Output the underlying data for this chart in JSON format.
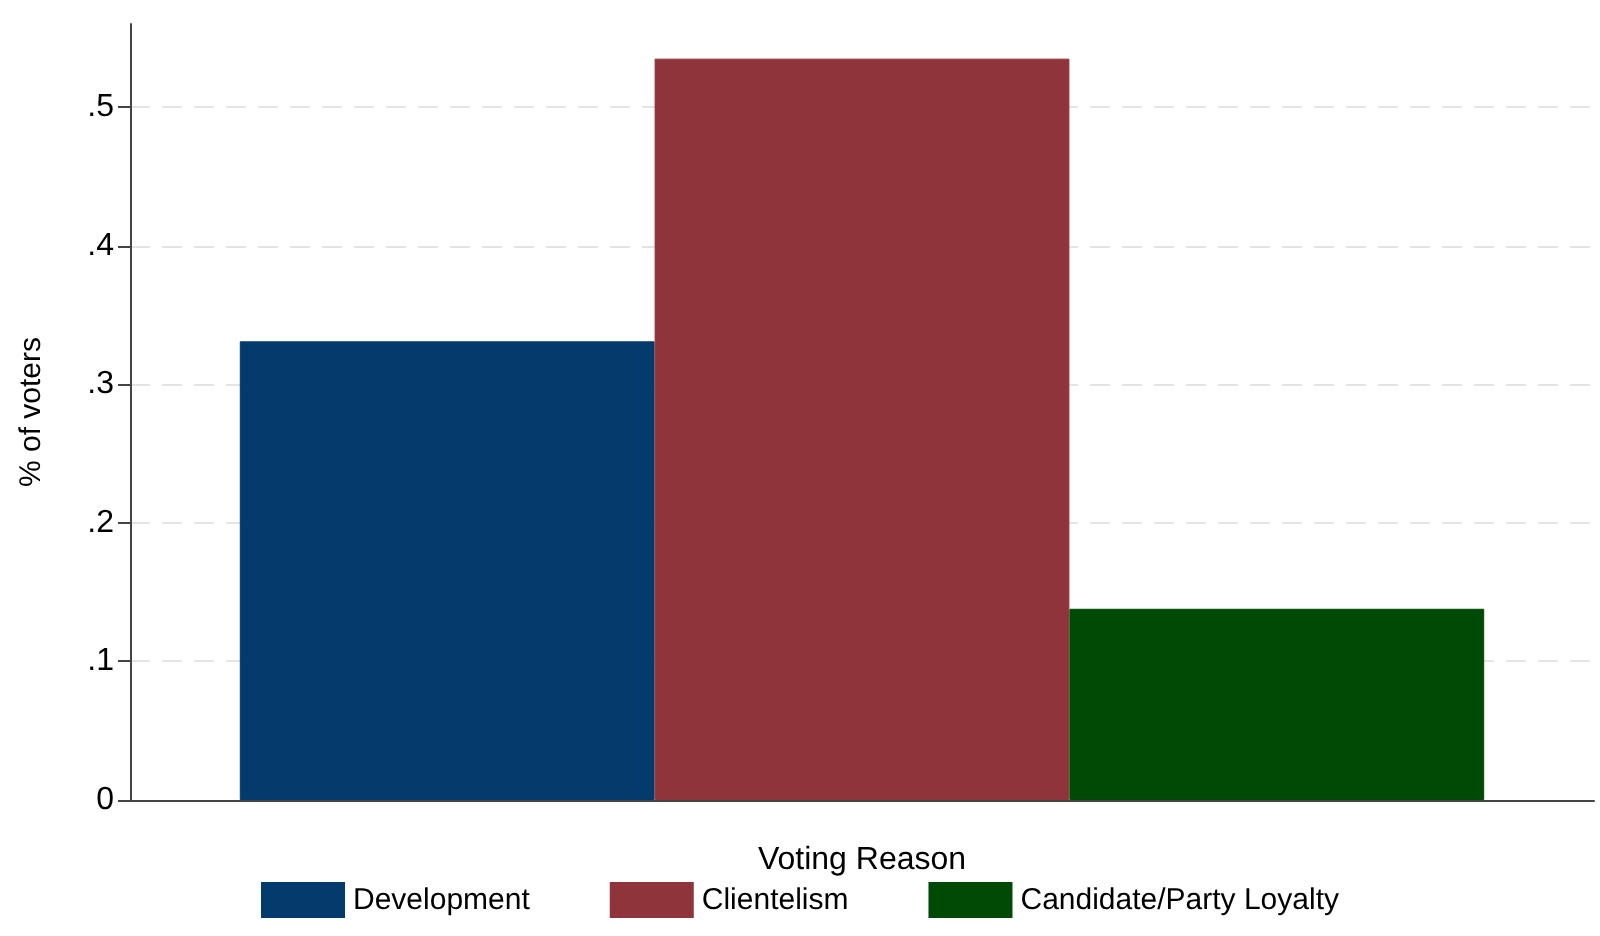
{
  "chart_data": {
    "type": "bar",
    "xlabel": "Voting Reason",
    "ylabel": "% of voters",
    "categories": [
      null
    ],
    "series": [
      {
        "name": "Development",
        "color": "#023b6c",
        "values": [
          0.331
        ]
      },
      {
        "name": "Clientelism",
        "color": "#8e343a",
        "values": [
          0.535
        ]
      },
      {
        "name": "Candidate/Party Loyalty",
        "color": "#014a05",
        "values": [
          0.138
        ]
      }
    ],
    "ylim": [
      0,
      0.56
    ],
    "yticks": [
      0,
      {
        "value": 0.1,
        "label": ".1"
      },
      {
        "value": 0.2,
        "label": ".2"
      },
      {
        "value": 0.3,
        "label": ".3"
      },
      {
        "value": 0.4,
        "label": ".4"
      },
      {
        "value": 0.5,
        "label": ".5"
      }
    ],
    "grid": "y",
    "legend": "bottom"
  }
}
